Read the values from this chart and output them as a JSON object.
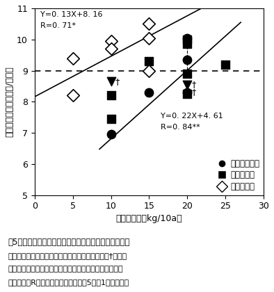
{
  "xlabel": "素全施用量（kg/10a）",
  "ylabel": "タンパク質含有率（％/举物）",
  "xlim": [
    0,
    30
  ],
  "ylim": [
    5,
    11
  ],
  "xticks": [
    0,
    5,
    10,
    15,
    20,
    25,
    30
  ],
  "yticks": [
    5,
    6,
    7,
    8,
    9,
    10,
    11
  ],
  "hline_y": 9.0,
  "reg1_line1": "Y=0. 13X+8. 16",
  "reg1_line2": "R=0. 71*",
  "reg1_slope": 0.13,
  "reg1_intercept": 8.16,
  "reg1_xrange": [
    0,
    30
  ],
  "reg2_line1": "Y=0. 22X+4. 61",
  "reg2_line2": "R=0. 84**",
  "reg2_slope": 0.22,
  "reg2_intercept": 4.61,
  "reg2_xrange": [
    8.5,
    27
  ],
  "circle_data": [
    [
      10,
      6.95
    ],
    [
      15,
      8.3
    ],
    [
      20,
      10.05
    ],
    [
      20,
      9.35
    ],
    [
      20,
      8.3
    ]
  ],
  "circle_dagger": [
    false,
    false,
    false,
    false,
    true
  ],
  "square_data": [
    [
      10,
      8.2
    ],
    [
      10,
      7.45
    ],
    [
      15,
      9.3
    ],
    [
      20,
      10.0
    ],
    [
      20,
      9.85
    ],
    [
      20,
      8.9
    ],
    [
      20,
      8.25
    ],
    [
      25,
      9.2
    ]
  ],
  "diamond_data": [
    [
      5,
      9.4
    ],
    [
      5,
      8.2
    ],
    [
      10,
      9.95
    ],
    [
      10,
      9.7
    ],
    [
      15,
      10.5
    ],
    [
      15,
      10.05
    ],
    [
      15,
      9.0
    ]
  ],
  "invtri_data": [
    [
      10,
      8.65
    ],
    [
      20,
      8.55
    ]
  ],
  "invtri_dagger": [
    true,
    true
  ],
  "dagger_circle_idx": 4,
  "legend_label0": "淡色黒ボク土",
  "legend_label1": "灰色低地土",
  "legend_label2": "泥　炭　土",
  "fig_label": "囵5　窒素施用量と種子中のタンパク質含有率との関係",
  "caption1": "注）窒素施用量は基肥，追肥窒素施用量の合計．†を付し",
  "caption2": "たものは止葉展開前にのみ追肥が行われたことを示す．",
  "caption3": "相関係数（R）に付した＊，　＊＊は5，　1％で有意．",
  "bg_color": "#ffffff"
}
